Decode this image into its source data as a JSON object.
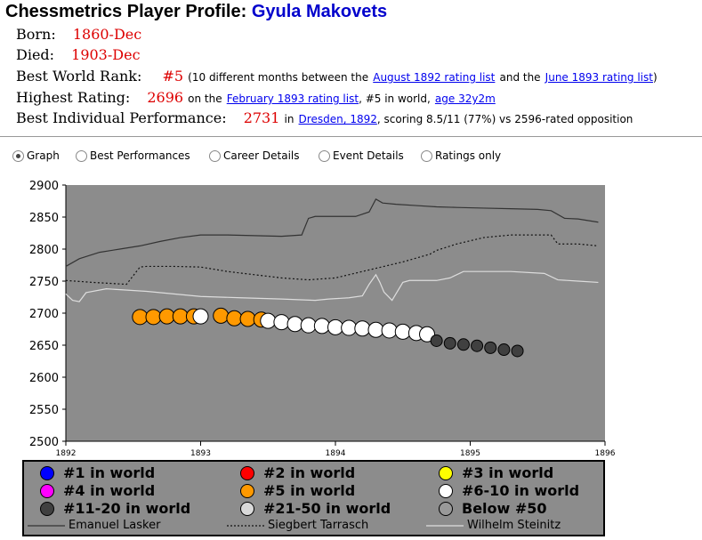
{
  "profile": {
    "title_prefix": "Chessmetrics Player Profile:",
    "player_name": "Gyula Makovets",
    "born_label": "Born:",
    "born_value": "1860-Dec",
    "died_label": "Died:",
    "died_value": "1903-Dec",
    "best_rank_label": "Best World Rank:",
    "best_rank_value": "#5",
    "best_rank_text1": "(10 different months between the",
    "best_rank_link1": "August 1892 rating list",
    "best_rank_text2": "and the",
    "best_rank_link2": "June 1893 rating list",
    "best_rank_text3": ")",
    "highest_label": "Highest Rating:",
    "highest_value": "2696",
    "highest_text1": "on the",
    "highest_link1": "February 1893 rating list",
    "highest_text2": ", #5 in world,",
    "highest_link2": "age 32y2m",
    "perf_label": "Best Individual Performance:",
    "perf_value": "2731",
    "perf_text1": "in",
    "perf_link1": "Dresden, 1892",
    "perf_text2": ", scoring 8.5/11 (77%) vs 2596-rated opposition"
  },
  "view_options": [
    {
      "label": "Graph",
      "selected": true
    },
    {
      "label": "Best Performances",
      "selected": false
    },
    {
      "label": "Career Details",
      "selected": false
    },
    {
      "label": "Event Details",
      "selected": false
    },
    {
      "label": "Ratings only",
      "selected": false
    }
  ],
  "colors": {
    "plot_bg": "#8c8c8c",
    "rank_5": "#ff9900",
    "rank_6_10": "#ffffff",
    "rank_11_20": "#404040",
    "value_red": "#dd0000",
    "link_blue": "#0000ee",
    "name_blue": "#0000cc"
  },
  "chart_data": {
    "type": "line",
    "xlabel": "",
    "ylabel": "",
    "xlim": [
      1892,
      1896
    ],
    "ylim": [
      2500,
      2900
    ],
    "x_ticks": [
      "1892",
      "1893",
      "1894",
      "1895",
      "1896"
    ],
    "y_ticks": [
      "2900",
      "2850",
      "2800",
      "2750",
      "2700",
      "2650",
      "2600",
      "2550",
      "2500"
    ],
    "series": [
      {
        "name": "Emanuel Lasker",
        "style": "solid",
        "color": "#333333",
        "x": [
          1892.0,
          1892.1,
          1892.25,
          1892.4,
          1892.55,
          1892.7,
          1892.85,
          1893.0,
          1893.2,
          1893.4,
          1893.6,
          1893.75,
          1893.8,
          1893.85,
          1894.0,
          1894.15,
          1894.25,
          1894.3,
          1894.35,
          1894.45,
          1894.6,
          1894.75,
          1894.9,
          1895.1,
          1895.3,
          1895.5,
          1895.6,
          1895.7,
          1895.8,
          1895.95
        ],
        "y": [
          2773,
          2785,
          2795,
          2800,
          2805,
          2812,
          2818,
          2822,
          2822,
          2821,
          2820,
          2822,
          2848,
          2851,
          2851,
          2851,
          2858,
          2878,
          2872,
          2870,
          2868,
          2866,
          2865,
          2864,
          2863,
          2862,
          2860,
          2848,
          2847,
          2842
        ]
      },
      {
        "name": "Siegbert Tarrasch",
        "style": "dotted",
        "color": "#111111",
        "x": [
          1892.0,
          1892.2,
          1892.45,
          1892.55,
          1892.6,
          1892.8,
          1893.0,
          1893.2,
          1893.4,
          1893.6,
          1893.8,
          1894.0,
          1894.2,
          1894.4,
          1894.5,
          1894.7,
          1894.75,
          1894.9,
          1895.1,
          1895.3,
          1895.5,
          1895.6,
          1895.65,
          1895.8,
          1895.95
        ],
        "y": [
          2751,
          2748,
          2745,
          2772,
          2773,
          2773,
          2772,
          2765,
          2760,
          2755,
          2752,
          2755,
          2765,
          2775,
          2780,
          2792,
          2798,
          2808,
          2818,
          2822,
          2822,
          2822,
          2808,
          2808,
          2805
        ]
      },
      {
        "name": "Wilhelm Steinitz",
        "style": "solid",
        "color": "#dddddd",
        "x": [
          1892.0,
          1892.05,
          1892.1,
          1892.15,
          1892.3,
          1892.6,
          1892.8,
          1893.0,
          1893.3,
          1893.6,
          1893.85,
          1893.95,
          1894.1,
          1894.2,
          1894.25,
          1894.3,
          1894.33,
          1894.36,
          1894.42,
          1894.5,
          1894.55,
          1894.65,
          1894.75,
          1894.85,
          1894.95,
          1895.3,
          1895.55,
          1895.65,
          1895.8,
          1895.95
        ],
        "y": [
          2730,
          2720,
          2718,
          2732,
          2738,
          2734,
          2730,
          2726,
          2724,
          2722,
          2720,
          2722,
          2724,
          2727,
          2745,
          2760,
          2748,
          2733,
          2720,
          2748,
          2751,
          2751,
          2751,
          2755,
          2765,
          2765,
          2762,
          2752,
          2750,
          2748
        ]
      }
    ],
    "markers": [
      {
        "rank": "#5",
        "x": [
          1892.55,
          1892.65,
          1892.75,
          1892.85,
          1892.95,
          1893.15,
          1893.25,
          1893.35,
          1893.45
        ],
        "y": [
          2694,
          2694,
          2695,
          2695,
          2695,
          2696,
          2692,
          2691,
          2690
        ]
      },
      {
        "rank": "#6-10",
        "x": [
          1893.0,
          1893.5,
          1893.6,
          1893.7,
          1893.8,
          1893.9,
          1894.0,
          1894.1,
          1894.2,
          1894.3,
          1894.4,
          1894.5,
          1894.6,
          1894.68
        ],
        "y": [
          2695,
          2688,
          2686,
          2683,
          2681,
          2680,
          2678,
          2677,
          2676,
          2674,
          2673,
          2671,
          2669,
          2667
        ]
      },
      {
        "rank": "#11-20",
        "x": [
          1894.75,
          1894.85,
          1894.95,
          1895.05,
          1895.15,
          1895.25,
          1895.35
        ],
        "y": [
          2657,
          2653,
          2651,
          2649,
          2646,
          2643,
          2641
        ]
      }
    ],
    "legend_placement": "bottom"
  },
  "legend": {
    "items": [
      {
        "label": "#1 in world",
        "color": "#0000ff"
      },
      {
        "label": "#2 in world",
        "color": "#ff0000"
      },
      {
        "label": "#3 in world",
        "color": "#ffff00"
      },
      {
        "label": "#4 in world",
        "color": "#ff00ff"
      },
      {
        "label": "#5 in world",
        "color": "#ff9900"
      },
      {
        "label": "#6-10 in world",
        "color": "#ffffff"
      },
      {
        "label": "#11-20 in world",
        "color": "#404040"
      },
      {
        "label": "#21-50 in world",
        "color": "#d9d9d9"
      },
      {
        "label": "Below #50",
        "color": "#999999"
      }
    ],
    "lines": [
      {
        "label": "Emanuel Lasker",
        "style": "solid"
      },
      {
        "label": "Siegbert Tarrasch",
        "style": "dotted"
      },
      {
        "label": "Wilhelm Steinitz",
        "style": "solid-light"
      }
    ]
  }
}
